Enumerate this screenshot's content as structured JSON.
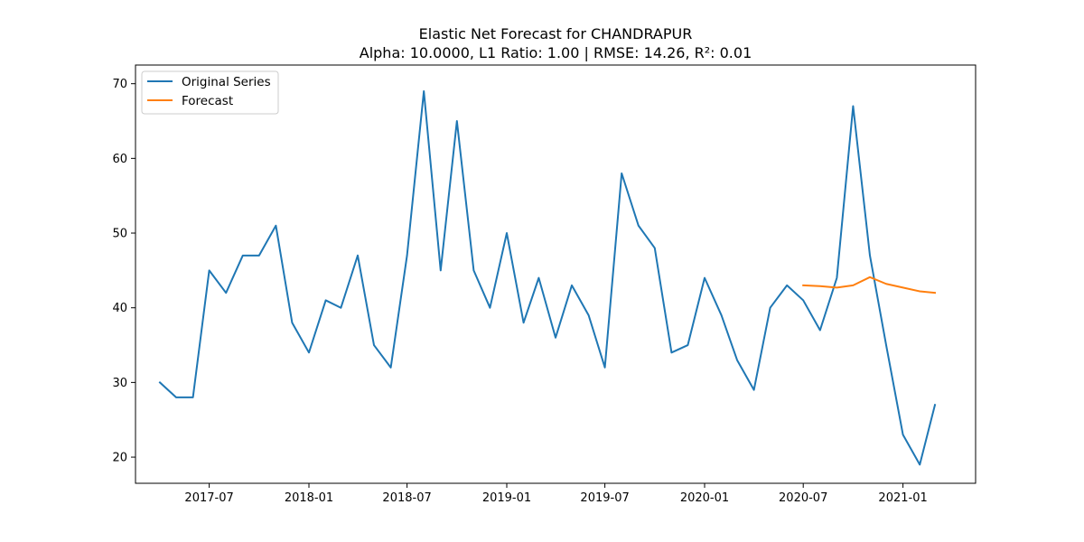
{
  "chart_data": {
    "type": "line",
    "title": "Elastic Net Forecast for CHANDRAPUR",
    "subtitle": "Alpha: 10.0000, L1 Ratio: 1.00 | RMSE: 14.26, R²: 0.01",
    "xlabel": "",
    "ylabel": "",
    "ylim": [
      16.5,
      72.5
    ],
    "xlim": [
      "2017-02-15",
      "2021-05-15"
    ],
    "grid": false,
    "legend_position": "top-left",
    "x_ticks": [
      {
        "date": "2017-07-01",
        "label": "2017-07"
      },
      {
        "date": "2018-01-01",
        "label": "2018-01"
      },
      {
        "date": "2018-07-01",
        "label": "2018-07"
      },
      {
        "date": "2019-01-01",
        "label": "2019-01"
      },
      {
        "date": "2019-07-01",
        "label": "2019-07"
      },
      {
        "date": "2020-01-01",
        "label": "2020-01"
      },
      {
        "date": "2020-07-01",
        "label": "2020-07"
      },
      {
        "date": "2021-01-01",
        "label": "2021-01"
      }
    ],
    "y_ticks": [
      20,
      30,
      40,
      50,
      60,
      70
    ],
    "series": [
      {
        "name": "Original Series",
        "color": "#1f77b4",
        "x": [
          "2017-04-01",
          "2017-05-01",
          "2017-06-01",
          "2017-07-01",
          "2017-08-01",
          "2017-09-01",
          "2017-10-01",
          "2017-11-01",
          "2017-12-01",
          "2018-01-01",
          "2018-02-01",
          "2018-03-01",
          "2018-04-01",
          "2018-05-01",
          "2018-06-01",
          "2018-07-01",
          "2018-08-01",
          "2018-09-01",
          "2018-10-01",
          "2018-11-01",
          "2018-12-01",
          "2019-01-01",
          "2019-02-01",
          "2019-03-01",
          "2019-04-01",
          "2019-05-01",
          "2019-06-01",
          "2019-07-01",
          "2019-08-01",
          "2019-09-01",
          "2019-10-01",
          "2019-11-01",
          "2019-12-01",
          "2020-01-01",
          "2020-02-01",
          "2020-03-01",
          "2020-04-01",
          "2020-05-01",
          "2020-06-01",
          "2020-07-01",
          "2020-08-01",
          "2020-09-01",
          "2020-10-01",
          "2020-11-01",
          "2020-12-01",
          "2021-01-01",
          "2021-02-01",
          "2021-03-01"
        ],
        "values": [
          30,
          28,
          28,
          45,
          42,
          47,
          47,
          51,
          38,
          34,
          41,
          40,
          47,
          35,
          32,
          47,
          69,
          45,
          65,
          45,
          40,
          50,
          38,
          44,
          36,
          43,
          39,
          32,
          58,
          51,
          48,
          34,
          35,
          44,
          39,
          33,
          29,
          40,
          43,
          41,
          37,
          44,
          67,
          47,
          35,
          23,
          19,
          27
        ]
      },
      {
        "name": "Forecast",
        "color": "#ff7f0e",
        "x": [
          "2020-07-01",
          "2020-08-01",
          "2020-09-01",
          "2020-10-01",
          "2020-11-01",
          "2020-12-01",
          "2021-01-01",
          "2021-02-01",
          "2021-03-01"
        ],
        "values": [
          43.0,
          42.9,
          42.7,
          43.0,
          44.1,
          43.2,
          42.7,
          42.2,
          42.0
        ]
      }
    ]
  }
}
